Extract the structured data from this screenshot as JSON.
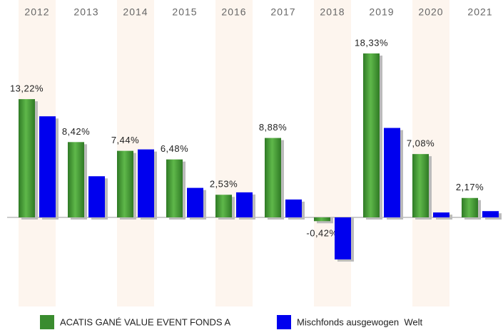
{
  "chart_data": {
    "type": "bar",
    "categories": [
      "2012",
      "2013",
      "2014",
      "2015",
      "2016",
      "2017",
      "2018",
      "2019",
      "2020",
      "2021"
    ],
    "series": [
      {
        "name": "ACATIS GANÉ VALUE EVENT FONDS A",
        "color": "#3a8c2f",
        "values": [
          13.22,
          8.42,
          7.44,
          6.48,
          2.53,
          8.88,
          -0.42,
          18.33,
          7.08,
          2.17
        ],
        "value_labels": [
          "13,22%",
          "8,42%",
          "7,44%",
          "6,48%",
          "2,53%",
          "8,88%",
          "-0,42%",
          "18,33%",
          "7,08%",
          "2,17%"
        ]
      },
      {
        "name": "Mischfonds ausgewogen  Welt",
        "color": "#0000ee",
        "values": [
          11.3,
          4.6,
          7.6,
          3.3,
          2.8,
          2.0,
          -4.7,
          10.0,
          0.55,
          0.7
        ]
      }
    ]
  }
}
